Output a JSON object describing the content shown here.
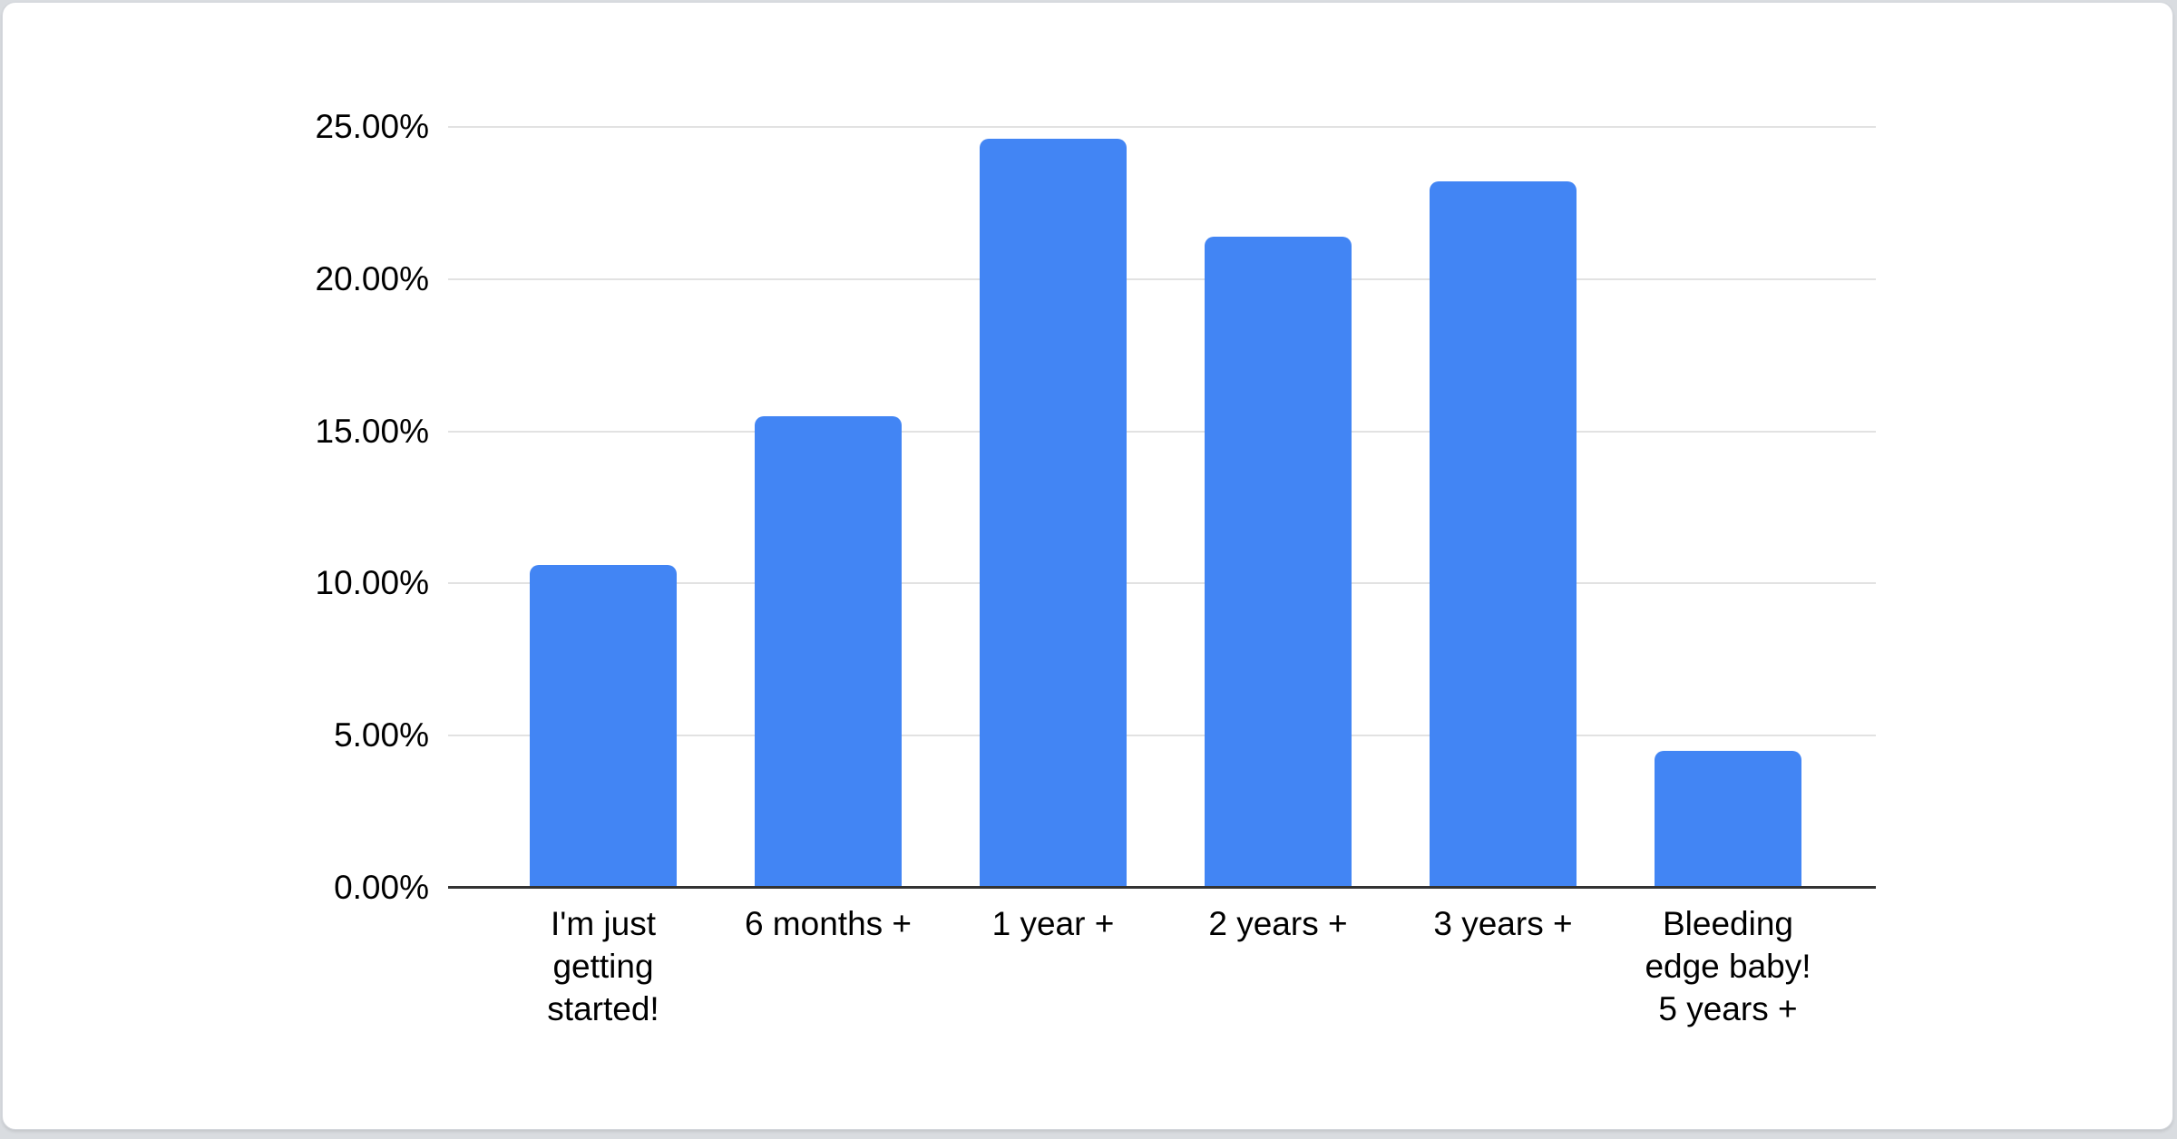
{
  "page": {
    "background_color": "#d9dce0",
    "card_background": "#ffffff",
    "card_border_color": "#d4d7dc"
  },
  "chart_data": {
    "type": "bar",
    "title": "",
    "xlabel": "",
    "ylabel": "",
    "categories": [
      "I'm just\ngetting\nstarted!",
      "6 months +",
      "1 year +",
      "2 years +",
      "3 years +",
      "Bleeding\nedge baby!\n5 years +"
    ],
    "values": [
      10.6,
      15.5,
      24.6,
      21.4,
      23.2,
      4.5
    ],
    "value_unit": "%",
    "ylim": [
      0,
      25
    ],
    "y_ticks": [
      "0.00%",
      "5.00%",
      "10.00%",
      "15.00%",
      "20.00%",
      "25.00%"
    ],
    "grid": true,
    "legend": "none",
    "bar_color": "#4285f4",
    "gridline_color": "#e2e2e2",
    "axis_line_color": "#333333",
    "label_color": "#000000"
  }
}
